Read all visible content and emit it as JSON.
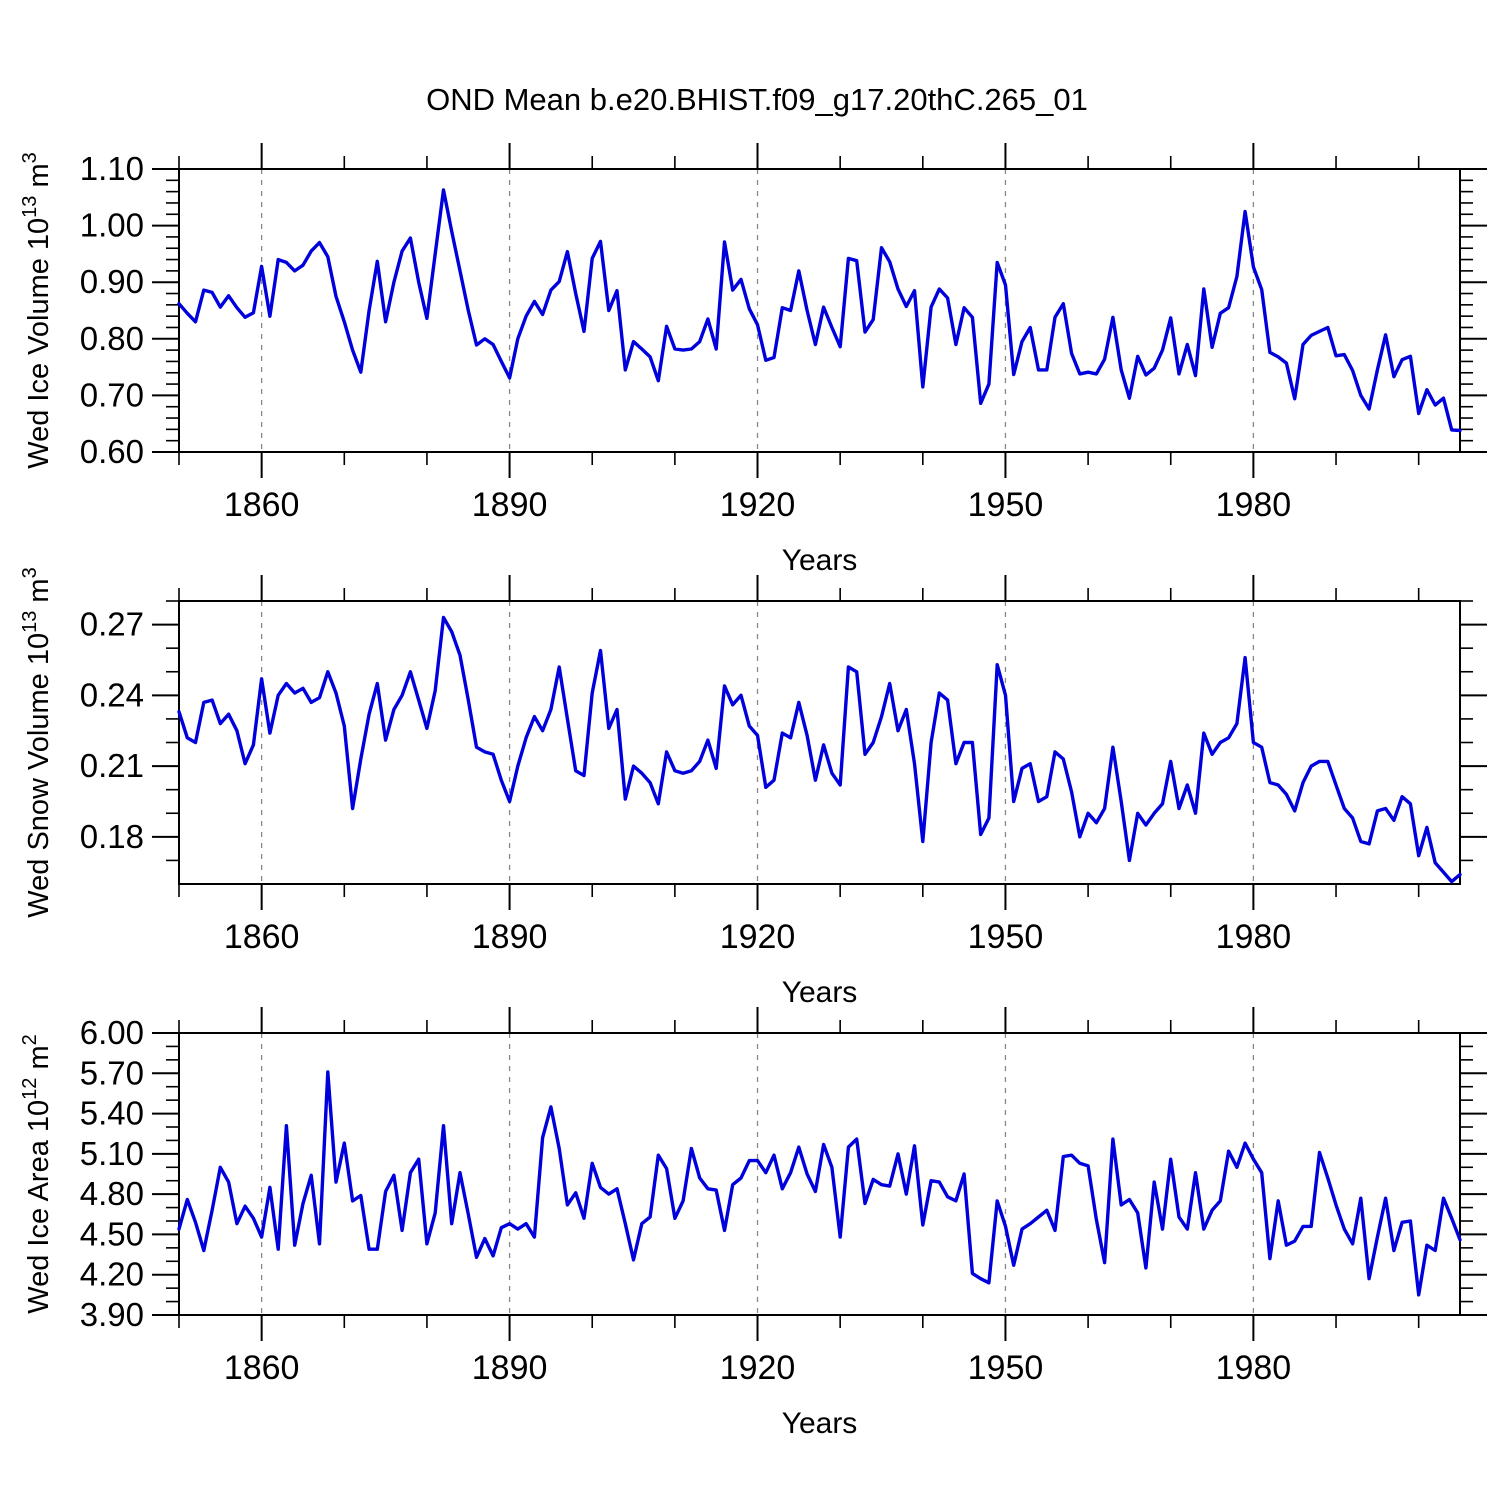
{
  "title": "OND Mean b.e20.BHIST.f09_g17.20thC.265_01",
  "colors": {
    "line": "#0000dd",
    "grid": "#888888",
    "axis": "#000000",
    "background": "#ffffff"
  },
  "x_axis": {
    "label": "Years",
    "range": [
      1850,
      2005
    ],
    "major_ticks": [
      1860,
      1890,
      1920,
      1950,
      1980
    ],
    "major_tick_labels": [
      "1860",
      "1890",
      "1920",
      "1950",
      "1980"
    ],
    "minor_ticks": [
      1850,
      1870,
      1880,
      1900,
      1910,
      1930,
      1940,
      1960,
      1970,
      1990,
      2000
    ],
    "gridlines": "dashed-vertical-at-major-ticks"
  },
  "years": {
    "start": 1850,
    "end": 2005,
    "step": 1
  },
  "chart_data": [
    {
      "type": "line",
      "name": "wed-ice-volume",
      "ylabel": "Wed Ice Volume 10^13 m^3",
      "ylabel_parts": [
        {
          "text": "Wed Ice Volume 10",
          "sup": false
        },
        {
          "text": "13",
          "sup": true
        },
        {
          "text": " m",
          "sup": false
        },
        {
          "text": "3",
          "sup": true
        }
      ],
      "ylim": [
        0.6,
        1.1
      ],
      "ytick_major": [
        0.6,
        0.7,
        0.8,
        0.9,
        1.0,
        1.1
      ],
      "ytick_labels": [
        "0.60",
        "0.70",
        "0.80",
        "0.90",
        "1.00",
        "1.10"
      ],
      "ytick_minor": [
        0.62,
        0.64,
        0.66,
        0.68,
        0.72,
        0.74,
        0.76,
        0.78,
        0.82,
        0.84,
        0.86,
        0.88,
        0.92,
        0.94,
        0.96,
        0.98,
        1.02,
        1.04,
        1.06,
        1.08
      ],
      "values": [
        0.862,
        0.845,
        0.83,
        0.886,
        0.882,
        0.856,
        0.876,
        0.855,
        0.838,
        0.846,
        0.928,
        0.84,
        0.94,
        0.935,
        0.92,
        0.93,
        0.955,
        0.97,
        0.945,
        0.875,
        0.83,
        0.78,
        0.741,
        0.85,
        0.937,
        0.83,
        0.9,
        0.955,
        0.978,
        0.9,
        0.836,
        0.95,
        1.063,
        0.99,
        0.92,
        0.85,
        0.789,
        0.8,
        0.79,
        0.76,
        0.731,
        0.8,
        0.84,
        0.866,
        0.843,
        0.886,
        0.901,
        0.954,
        0.88,
        0.813,
        0.942,
        0.972,
        0.85,
        0.885,
        0.745,
        0.795,
        0.782,
        0.768,
        0.726,
        0.822,
        0.782,
        0.78,
        0.782,
        0.795,
        0.835,
        0.782,
        0.971,
        0.886,
        0.905,
        0.853,
        0.825,
        0.762,
        0.767,
        0.855,
        0.85,
        0.92,
        0.85,
        0.79,
        0.856,
        0.82,
        0.786,
        0.942,
        0.938,
        0.812,
        0.834,
        0.961,
        0.936,
        0.888,
        0.857,
        0.885,
        0.715,
        0.856,
        0.888,
        0.872,
        0.79,
        0.855,
        0.838,
        0.686,
        0.72,
        0.935,
        0.895,
        0.737,
        0.795,
        0.82,
        0.745,
        0.745,
        0.838,
        0.862,
        0.774,
        0.738,
        0.741,
        0.738,
        0.764,
        0.838,
        0.745,
        0.695,
        0.769,
        0.736,
        0.748,
        0.78,
        0.837,
        0.738,
        0.79,
        0.735,
        0.888,
        0.785,
        0.845,
        0.855,
        0.91,
        1.025,
        0.927,
        0.887,
        0.776,
        0.768,
        0.757,
        0.694,
        0.79,
        0.806,
        0.813,
        0.82,
        0.77,
        0.772,
        0.744,
        0.7,
        0.676,
        0.745,
        0.807,
        0.733,
        0.763,
        0.769,
        0.668,
        0.71,
        0.683,
        0.695,
        0.639,
        0.638
      ]
    },
    {
      "type": "line",
      "name": "wed-snow-volume",
      "ylabel": "Wed Snow Volume 10^13 m^3",
      "ylabel_parts": [
        {
          "text": "Wed Snow Volume 10",
          "sup": false
        },
        {
          "text": "13",
          "sup": true
        },
        {
          "text": " m",
          "sup": false
        },
        {
          "text": "3",
          "sup": true
        }
      ],
      "ylim": [
        0.16,
        0.28
      ],
      "ytick_major": [
        0.18,
        0.21,
        0.24,
        0.27
      ],
      "ytick_labels": [
        "0.18",
        "0.21",
        "0.24",
        "0.27"
      ],
      "ytick_minor": [
        0.17,
        0.19,
        0.2,
        0.22,
        0.23,
        0.25,
        0.26,
        0.28
      ],
      "values": [
        0.233,
        0.222,
        0.22,
        0.237,
        0.238,
        0.228,
        0.232,
        0.225,
        0.211,
        0.219,
        0.247,
        0.224,
        0.24,
        0.245,
        0.241,
        0.243,
        0.237,
        0.239,
        0.25,
        0.241,
        0.227,
        0.192,
        0.213,
        0.232,
        0.245,
        0.221,
        0.234,
        0.24,
        0.25,
        0.238,
        0.226,
        0.242,
        0.273,
        0.267,
        0.257,
        0.238,
        0.218,
        0.216,
        0.215,
        0.204,
        0.195,
        0.21,
        0.222,
        0.231,
        0.225,
        0.234,
        0.252,
        0.23,
        0.208,
        0.206,
        0.241,
        0.259,
        0.226,
        0.234,
        0.196,
        0.21,
        0.207,
        0.203,
        0.194,
        0.216,
        0.208,
        0.207,
        0.208,
        0.212,
        0.221,
        0.209,
        0.244,
        0.236,
        0.24,
        0.227,
        0.223,
        0.201,
        0.204,
        0.224,
        0.222,
        0.237,
        0.223,
        0.204,
        0.219,
        0.207,
        0.202,
        0.252,
        0.25,
        0.215,
        0.22,
        0.231,
        0.245,
        0.225,
        0.234,
        0.211,
        0.178,
        0.22,
        0.241,
        0.238,
        0.211,
        0.22,
        0.22,
        0.181,
        0.188,
        0.253,
        0.24,
        0.195,
        0.209,
        0.211,
        0.195,
        0.197,
        0.216,
        0.213,
        0.199,
        0.18,
        0.19,
        0.186,
        0.192,
        0.218,
        0.195,
        0.17,
        0.19,
        0.185,
        0.19,
        0.194,
        0.212,
        0.192,
        0.202,
        0.19,
        0.224,
        0.215,
        0.22,
        0.222,
        0.228,
        0.256,
        0.22,
        0.218,
        0.203,
        0.202,
        0.198,
        0.191,
        0.203,
        0.21,
        0.212,
        0.212,
        0.202,
        0.192,
        0.188,
        0.178,
        0.177,
        0.191,
        0.192,
        0.187,
        0.197,
        0.194,
        0.172,
        0.184,
        0.169,
        0.165,
        0.161,
        0.164
      ]
    },
    {
      "type": "line",
      "name": "wed-ice-area",
      "ylabel": "Wed Ice Area 10^12 m^2",
      "ylabel_parts": [
        {
          "text": "Wed Ice Area 10",
          "sup": false
        },
        {
          "text": "12",
          "sup": true
        },
        {
          "text": " m",
          "sup": false
        },
        {
          "text": "2",
          "sup": true
        }
      ],
      "ylim": [
        3.9,
        6.0
      ],
      "ytick_major": [
        3.9,
        4.2,
        4.5,
        4.8,
        5.1,
        5.4,
        5.7,
        6.0
      ],
      "ytick_labels": [
        "3.90",
        "4.20",
        "4.50",
        "4.80",
        "5.10",
        "5.40",
        "5.70",
        "6.00"
      ],
      "ytick_minor": [
        4.0,
        4.1,
        4.3,
        4.4,
        4.6,
        4.7,
        4.9,
        5.0,
        5.2,
        5.3,
        5.5,
        5.6,
        5.8,
        5.9
      ],
      "values": [
        4.54,
        4.76,
        4.59,
        4.38,
        4.68,
        5.0,
        4.89,
        4.58,
        4.71,
        4.62,
        4.48,
        4.85,
        4.39,
        5.31,
        4.42,
        4.73,
        4.94,
        4.43,
        5.71,
        4.89,
        5.18,
        4.75,
        4.79,
        4.39,
        4.39,
        4.82,
        4.94,
        4.53,
        4.96,
        5.06,
        4.43,
        4.66,
        5.31,
        4.58,
        4.96,
        4.65,
        4.33,
        4.47,
        4.34,
        4.55,
        4.58,
        4.54,
        4.58,
        4.48,
        5.22,
        5.45,
        5.14,
        4.72,
        4.81,
        4.62,
        5.03,
        4.85,
        4.8,
        4.84,
        4.58,
        4.31,
        4.58,
        4.63,
        5.09,
        4.99,
        4.62,
        4.75,
        5.14,
        4.92,
        4.84,
        4.83,
        4.53,
        4.87,
        4.92,
        5.05,
        5.05,
        4.96,
        5.09,
        4.84,
        4.96,
        5.15,
        4.95,
        4.82,
        5.17,
        5.0,
        4.48,
        5.15,
        5.21,
        4.73,
        4.91,
        4.87,
        4.86,
        5.1,
        4.8,
        5.16,
        4.57,
        4.9,
        4.89,
        4.78,
        4.75,
        4.95,
        4.21,
        4.17,
        4.14,
        4.75,
        4.56,
        4.27,
        4.54,
        4.58,
        4.63,
        4.68,
        4.53,
        5.08,
        5.09,
        5.03,
        5.01,
        4.61,
        4.29,
        5.21,
        4.72,
        4.76,
        4.66,
        4.25,
        4.89,
        4.54,
        5.06,
        4.63,
        4.54,
        4.96,
        4.54,
        4.68,
        4.75,
        5.12,
        5.0,
        5.18,
        5.06,
        4.96,
        4.32,
        4.75,
        4.42,
        4.45,
        4.56,
        4.56,
        5.11,
        4.92,
        4.72,
        4.54,
        4.43,
        4.77,
        4.17,
        4.48,
        4.77,
        4.38,
        4.59,
        4.6,
        4.05,
        4.42,
        4.38,
        4.77,
        4.62,
        4.46
      ]
    }
  ]
}
